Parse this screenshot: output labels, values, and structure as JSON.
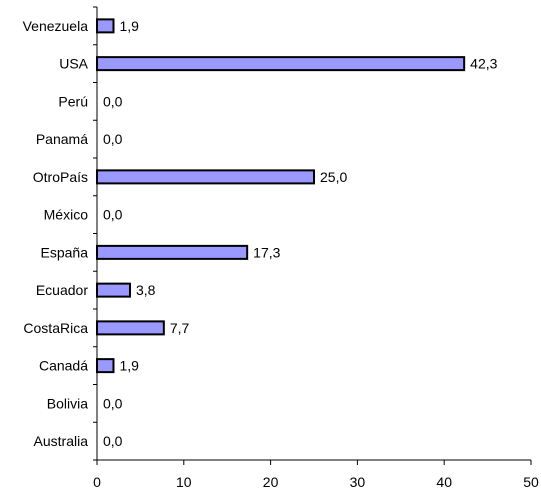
{
  "chart_data": {
    "type": "bar",
    "orientation": "horizontal",
    "categories": [
      "Venezuela",
      "USA",
      "Perú",
      "Panamá",
      "OtroPaís",
      "México",
      "España",
      "Ecuador",
      "CostaRica",
      "Canadá",
      "Bolivia",
      "Australia"
    ],
    "values": [
      1.9,
      42.3,
      0.0,
      0.0,
      25.0,
      0.0,
      17.3,
      3.8,
      7.7,
      1.9,
      0.0,
      0.0
    ],
    "value_labels": [
      "1,9",
      "42,3",
      "0,0",
      "0,0",
      "25,0",
      "0,0",
      "17,3",
      "3,8",
      "7,7",
      "1,9",
      "0,0",
      "0,0"
    ],
    "x_ticks": [
      "0",
      "10",
      "20",
      "30",
      "40",
      "50"
    ],
    "xlim": [
      0,
      50
    ],
    "title": "",
    "xlabel": "",
    "ylabel": "",
    "grid": false,
    "colors": {
      "bar_fill": "#9999ff",
      "bar_stroke": "#000000"
    }
  }
}
